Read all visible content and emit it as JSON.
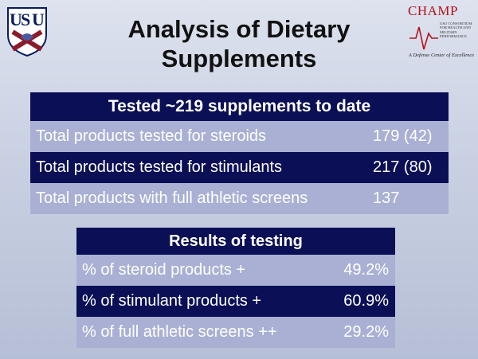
{
  "title": "Analysis of Dietary Supplements",
  "champ": {
    "name": "CHAMP",
    "subtitle": "USU Consortium for Health and Military Performance",
    "tagline": "A Defense Center of Excellence"
  },
  "table1": {
    "header": "Tested ~219 supplements to date",
    "rows": [
      {
        "label": "Total products tested for steroids",
        "value": "179 (42)"
      },
      {
        "label": "Total products tested for stimulants",
        "value": "217 (80)"
      },
      {
        "label": "Total products with full athletic screens",
        "value": "137"
      }
    ]
  },
  "table2": {
    "header": "Results of testing",
    "rows": [
      {
        "label": "% of steroid products +",
        "value": "49.2%"
      },
      {
        "label": "% of stimulant products +",
        "value": "60.9%"
      },
      {
        "label": "% of full athletic screens ++",
        "value": "29.2%"
      }
    ]
  }
}
